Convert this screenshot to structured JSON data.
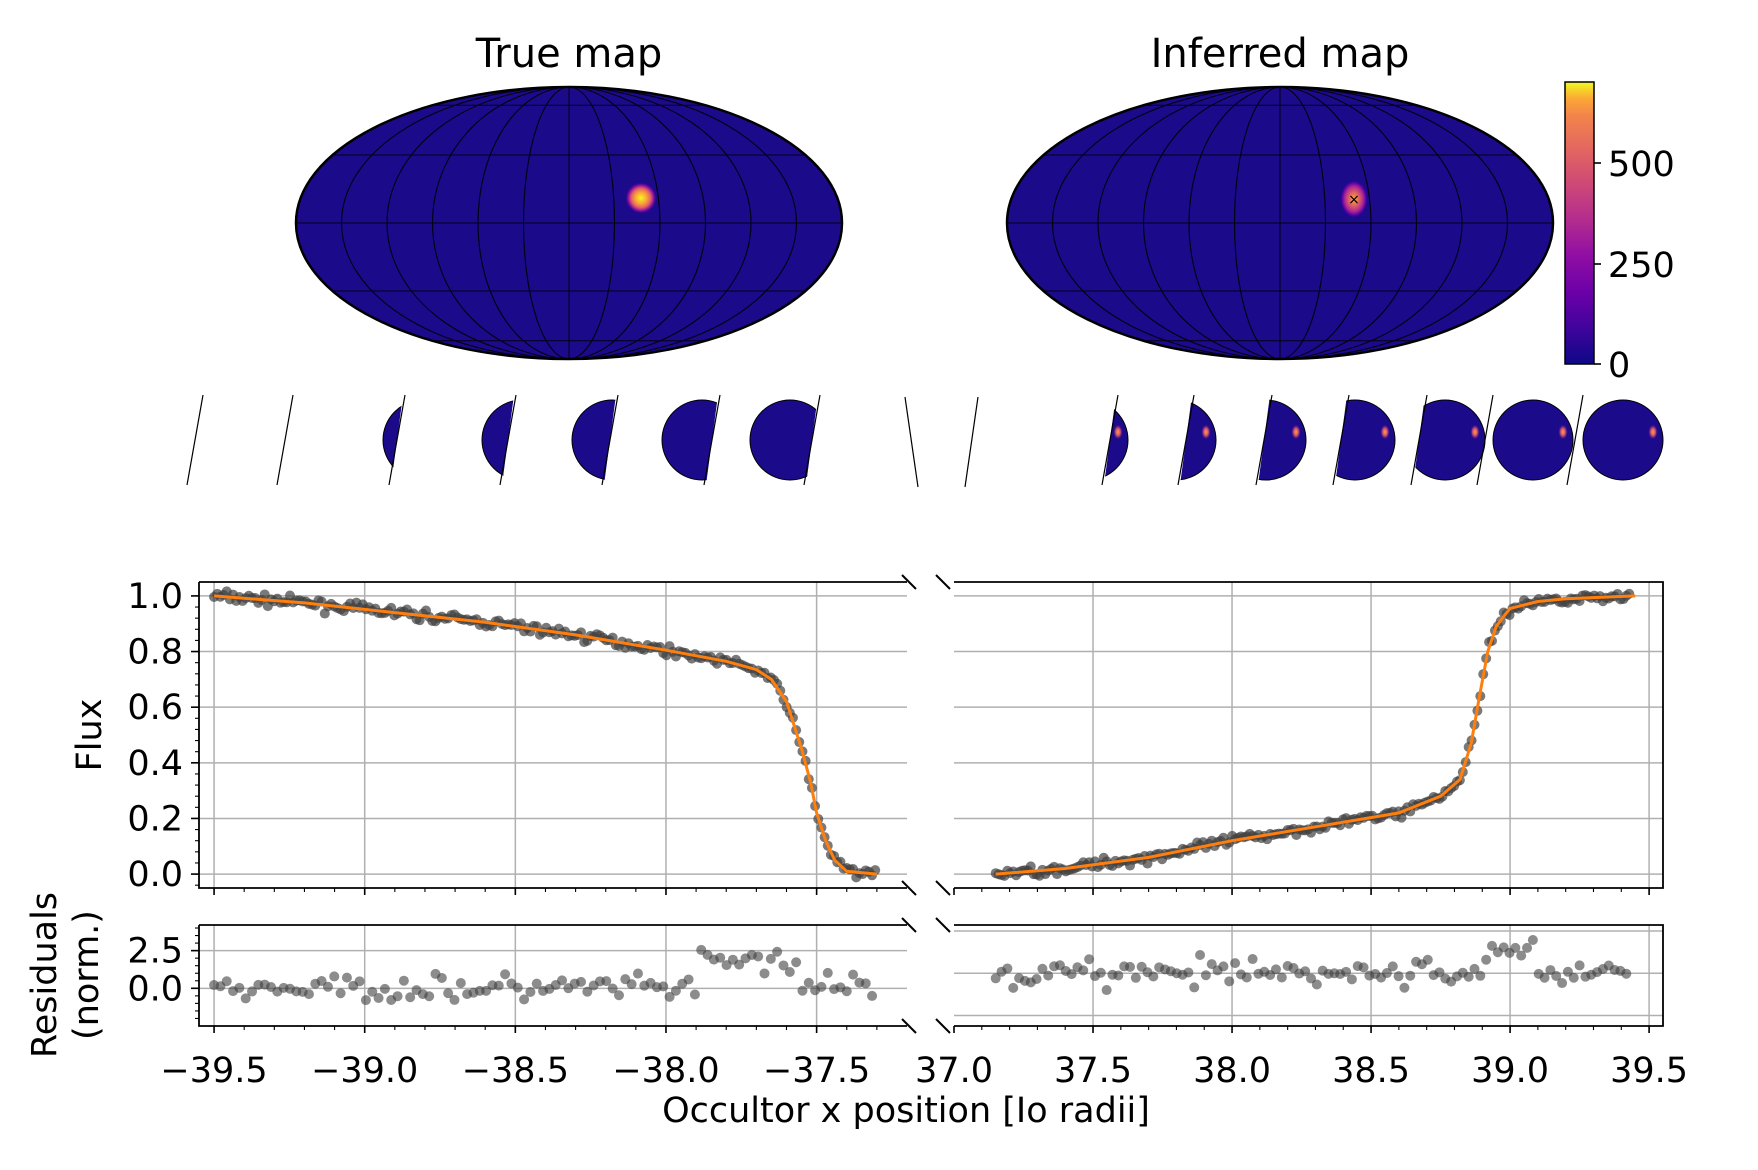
{
  "chart_data": {
    "type": "scatter",
    "maps": {
      "true_map": {
        "title": "True map",
        "spot": {
          "lon_deg": 50,
          "lat_deg": 14,
          "peak": 700
        }
      },
      "inferred_map": {
        "title": "Inferred map",
        "spot": {
          "lon_deg": 50,
          "lat_deg": 14,
          "peak": 500
        }
      },
      "colorbar": {
        "ticks": [
          "0",
          "250",
          "500"
        ],
        "range": [
          0,
          700
        ],
        "colormap": "plasma"
      }
    },
    "xlabel": "Occultor x position [Io radii]",
    "flux_panel": {
      "ylabel": "Flux",
      "ylim": [
        -0.05,
        1.05
      ],
      "yticks": [
        "0.0",
        "0.2",
        "0.4",
        "0.6",
        "0.8",
        "1.0"
      ],
      "ingress": {
        "xlim": [
          -39.55,
          -37.2
        ],
        "xticks": [
          "−39.5",
          "−39.0",
          "−38.5",
          "−38.0",
          "−37.5"
        ],
        "model": {
          "x": [
            -39.5,
            -39.2,
            -38.9,
            -38.6,
            -38.3,
            -38.0,
            -37.8,
            -37.7,
            -37.65,
            -37.6,
            -37.55,
            -37.52,
            -37.5,
            -37.47,
            -37.44,
            -37.4,
            -37.3
          ],
          "y": [
            1.0,
            0.975,
            0.94,
            0.905,
            0.86,
            0.805,
            0.765,
            0.735,
            0.7,
            0.62,
            0.45,
            0.33,
            0.22,
            0.12,
            0.05,
            0.01,
            0.0
          ]
        },
        "model_color": "#ff7f0e",
        "points_color": "#404040"
      },
      "egress": {
        "xlim": [
          37.0,
          39.55
        ],
        "xticks": [
          "37.0",
          "37.5",
          "38.0",
          "38.5",
          "39.0",
          "39.5"
        ],
        "model": {
          "x": [
            37.15,
            37.4,
            37.7,
            38.0,
            38.3,
            38.6,
            38.75,
            38.82,
            38.86,
            38.89,
            38.92,
            38.95,
            38.98,
            39.0,
            39.1,
            39.2,
            39.45
          ],
          "y": [
            0.0,
            0.02,
            0.06,
            0.12,
            0.17,
            0.22,
            0.28,
            0.34,
            0.47,
            0.64,
            0.8,
            0.89,
            0.93,
            0.955,
            0.98,
            0.99,
            1.0
          ]
        },
        "model_color": "#ff7f0e",
        "points_color": "#404040"
      }
    },
    "residuals_panel": {
      "ylabel": "Residuals\n(norm.)",
      "ylabel_lines": [
        "Residuals",
        "(norm.)"
      ],
      "yticks": [
        "0.0",
        "2.5"
      ],
      "ylim": [
        -2.5,
        4.2
      ]
    }
  }
}
